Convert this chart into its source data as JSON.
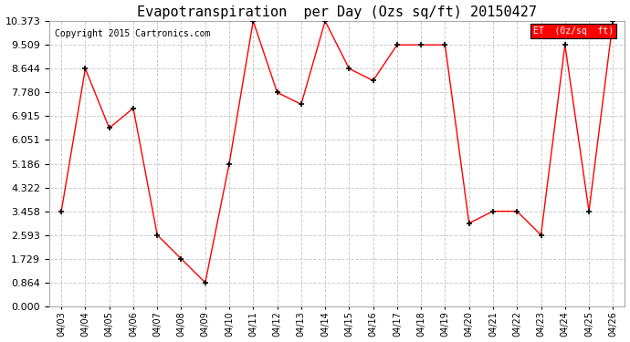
{
  "title": "Evapotranspiration  per Day (Ozs sq/ft) 20150427",
  "copyright": "Copyright 2015 Cartronics.com",
  "legend_label": "ET  (0z/sq  ft)",
  "dates": [
    "04/03",
    "04/04",
    "04/05",
    "04/06",
    "04/07",
    "04/08",
    "04/09",
    "04/10",
    "04/11",
    "04/12",
    "04/13",
    "04/14",
    "04/15",
    "04/16",
    "04/17",
    "04/18",
    "04/19",
    "04/20",
    "04/21",
    "04/22",
    "04/23",
    "04/24",
    "04/25",
    "04/26"
  ],
  "values": [
    3.458,
    8.644,
    6.483,
    7.207,
    2.593,
    1.729,
    0.864,
    5.186,
    10.373,
    7.78,
    7.346,
    10.373,
    8.644,
    8.21,
    9.509,
    9.509,
    9.509,
    3.024,
    3.458,
    3.458,
    2.593,
    9.509,
    3.458,
    10.373
  ],
  "line_color": "red",
  "marker": "+",
  "marker_color": "black",
  "bg_color": "#ffffff",
  "grid_color": "#cccccc",
  "ylim": [
    0.0,
    10.373
  ],
  "yticks": [
    0.0,
    0.864,
    1.729,
    2.593,
    3.458,
    4.322,
    5.186,
    6.051,
    6.915,
    7.78,
    8.644,
    9.509,
    10.373
  ],
  "legend_bg": "red",
  "legend_text_color": "white",
  "title_fontsize": 11,
  "copyright_fontsize": 7,
  "tick_fontsize": 7,
  "ytick_fontsize": 8
}
